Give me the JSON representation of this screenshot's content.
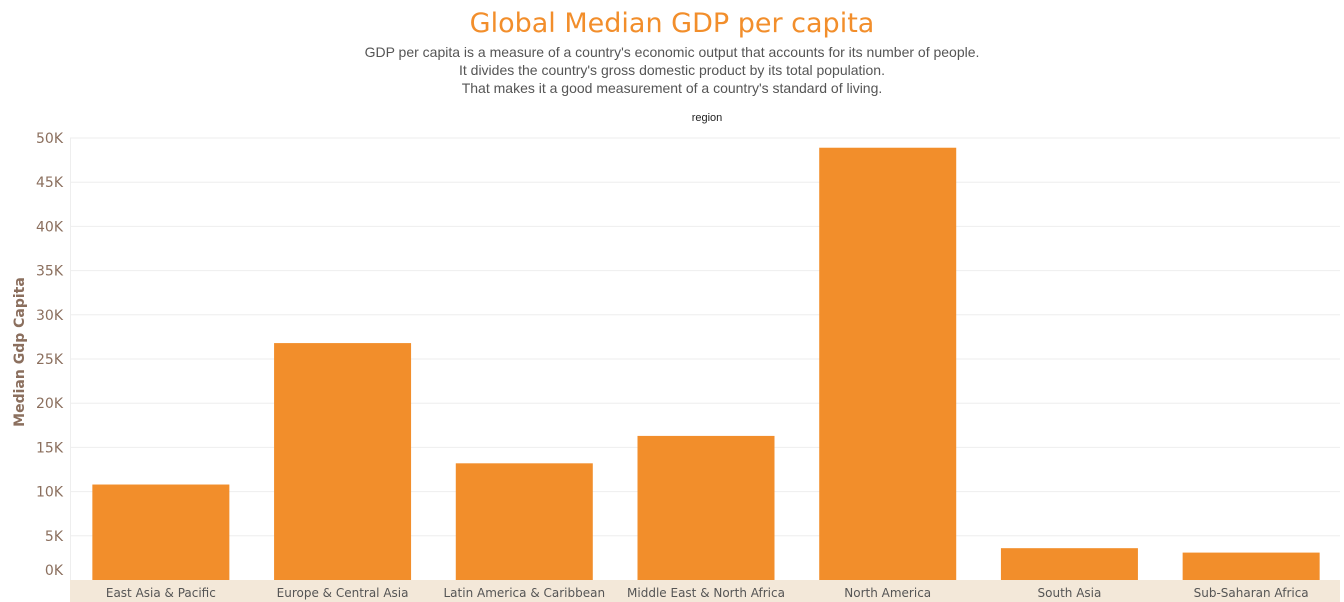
{
  "chart_data": {
    "type": "bar",
    "title": "Global Median GDP per capita",
    "subtitle_lines": [
      "GDP per capita is a measure of a country's economic output that accounts for its number of people.",
      "It divides the country's gross domestic product by its total population.",
      "That makes it a good measurement of a country's standard of living."
    ],
    "column_header": "region",
    "ylabel": "Median Gdp Capita",
    "xlabel": "",
    "ylim": [
      0,
      50000
    ],
    "yticks": [
      0,
      5000,
      10000,
      15000,
      20000,
      25000,
      30000,
      35000,
      40000,
      45000,
      50000
    ],
    "ytick_labels": [
      "0K",
      "5K",
      "10K",
      "15K",
      "20K",
      "25K",
      "30K",
      "35K",
      "40K",
      "45K",
      "50K"
    ],
    "grid": true,
    "categories": [
      "East Asia & Pacific",
      "Europe & Central Asia",
      "Latin America & Caribbean",
      "Middle East & North Africa",
      "North America",
      "South Asia",
      "Sub-Saharan Africa"
    ],
    "values": [
      10800,
      26800,
      13200,
      16300,
      48900,
      3600,
      3100
    ],
    "colors": {
      "bar": "#F28E2B",
      "title": "#F28E2B",
      "axis_text": "#8B6F5E",
      "category_band": "#F3E8D9",
      "gridline": "#EEEEEE"
    }
  }
}
